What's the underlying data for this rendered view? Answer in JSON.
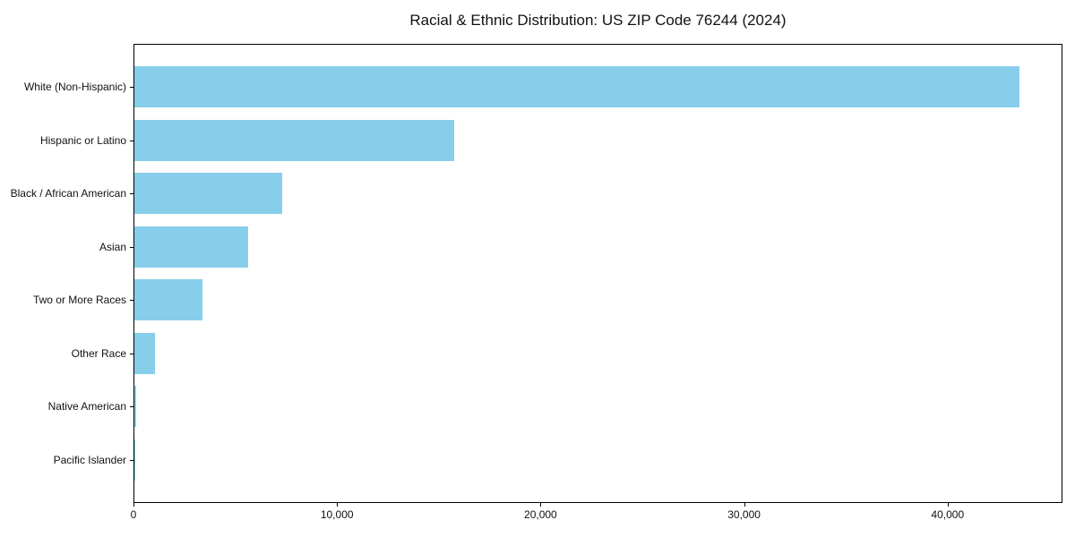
{
  "title": "Racial & Ethnic Distribution: US ZIP Code 76244 (2024)",
  "chart_data": {
    "type": "bar",
    "orientation": "horizontal",
    "title": "Racial & Ethnic Distribution: US ZIP Code 76244 (2024)",
    "categories": [
      "White (Non-Hispanic)",
      "Hispanic or Latino",
      "Black / African American",
      "Asian",
      "Two or More Races",
      "Other Race",
      "Native American",
      "Pacific Islander"
    ],
    "values": [
      43520,
      15730,
      7270,
      5590,
      3350,
      1010,
      100,
      30
    ],
    "xlabel": "",
    "ylabel": "",
    "xlim": [
      0,
      45600
    ],
    "x_ticks": [
      0,
      10000,
      20000,
      30000,
      40000
    ],
    "x_tick_labels": [
      "0",
      "10,000",
      "20,000",
      "30,000",
      "40,000"
    ],
    "bar_color": "#87CEEB",
    "background_color": "#ffffff",
    "spine_color": "#000000",
    "grid": false,
    "legend": null
  }
}
